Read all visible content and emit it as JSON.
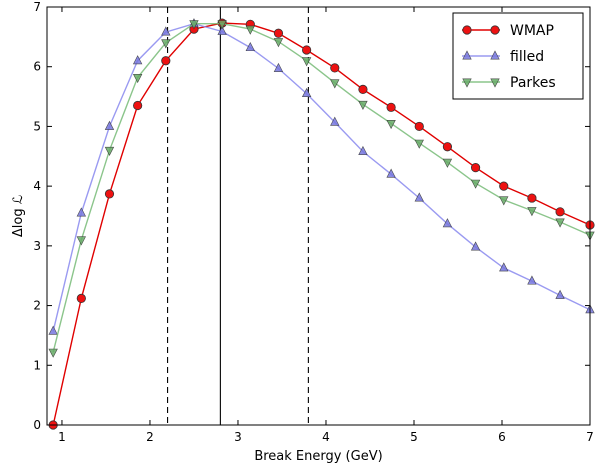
{
  "chart_data": {
    "type": "line",
    "xlabel": "Break Energy (GeV)",
    "ylabel": "Δlog ℒ",
    "xlim": [
      0.83,
      7.0
    ],
    "ylim": [
      0,
      7
    ],
    "xticks": [
      1,
      2,
      3,
      4,
      5,
      6,
      7
    ],
    "yticks": [
      0,
      1,
      2,
      3,
      4,
      5,
      6,
      7
    ],
    "xtick_labels": [
      "1",
      "2",
      "3",
      "4",
      "5",
      "6",
      "7"
    ],
    "ytick_labels": [
      "0",
      "1",
      "2",
      "3",
      "4",
      "5",
      "6",
      "7"
    ],
    "grid": false,
    "legend_position": "top-right",
    "vlines": [
      {
        "x": 2.2,
        "style": "dashed",
        "color": "#000000"
      },
      {
        "x": 2.8,
        "style": "solid",
        "color": "#000000"
      },
      {
        "x": 3.8,
        "style": "dashed",
        "color": "#000000"
      }
    ],
    "series": [
      {
        "name": "WMAP",
        "color": "#e00000",
        "marker": "circle",
        "marker_color": "#ee1111",
        "alpha": 1.0,
        "x": [
          0.9,
          1.22,
          1.54,
          1.86,
          2.18,
          2.5,
          2.82,
          3.14,
          3.46,
          3.78,
          4.1,
          4.42,
          4.74,
          5.06,
          5.38,
          5.7,
          6.02,
          6.34,
          6.66,
          7.0
        ],
        "y": [
          0.0,
          2.12,
          3.87,
          5.35,
          6.1,
          6.63,
          6.73,
          6.71,
          6.56,
          6.28,
          5.98,
          5.62,
          5.32,
          5.0,
          4.66,
          4.31,
          4.0,
          3.8,
          3.57,
          3.35
        ]
      },
      {
        "name": "filled",
        "color": "#8888ee",
        "marker": "triangle-up",
        "marker_color": "#7777dd",
        "alpha": 0.85,
        "x": [
          0.9,
          1.22,
          1.54,
          1.86,
          2.18,
          2.5,
          2.82,
          3.14,
          3.46,
          3.78,
          4.1,
          4.42,
          4.74,
          5.06,
          5.38,
          5.7,
          6.02,
          6.34,
          6.66,
          7.0
        ],
        "y": [
          1.57,
          3.55,
          5.0,
          6.1,
          6.58,
          6.72,
          6.59,
          6.32,
          5.97,
          5.55,
          5.07,
          4.58,
          4.2,
          3.8,
          3.37,
          2.98,
          2.63,
          2.41,
          2.17,
          1.93
        ]
      },
      {
        "name": "Parkes",
        "color": "#77bb77",
        "marker": "triangle-down",
        "marker_color": "#66aa66",
        "alpha": 0.85,
        "x": [
          0.9,
          1.22,
          1.54,
          1.86,
          2.18,
          2.5,
          2.82,
          3.14,
          3.46,
          3.78,
          4.1,
          4.42,
          4.74,
          5.06,
          5.38,
          5.7,
          6.02,
          6.34,
          6.66,
          7.0
        ],
        "y": [
          1.22,
          3.1,
          4.6,
          5.82,
          6.4,
          6.72,
          6.72,
          6.63,
          6.42,
          6.1,
          5.73,
          5.37,
          5.05,
          4.72,
          4.4,
          4.05,
          3.77,
          3.59,
          3.4,
          3.18
        ]
      }
    ]
  }
}
